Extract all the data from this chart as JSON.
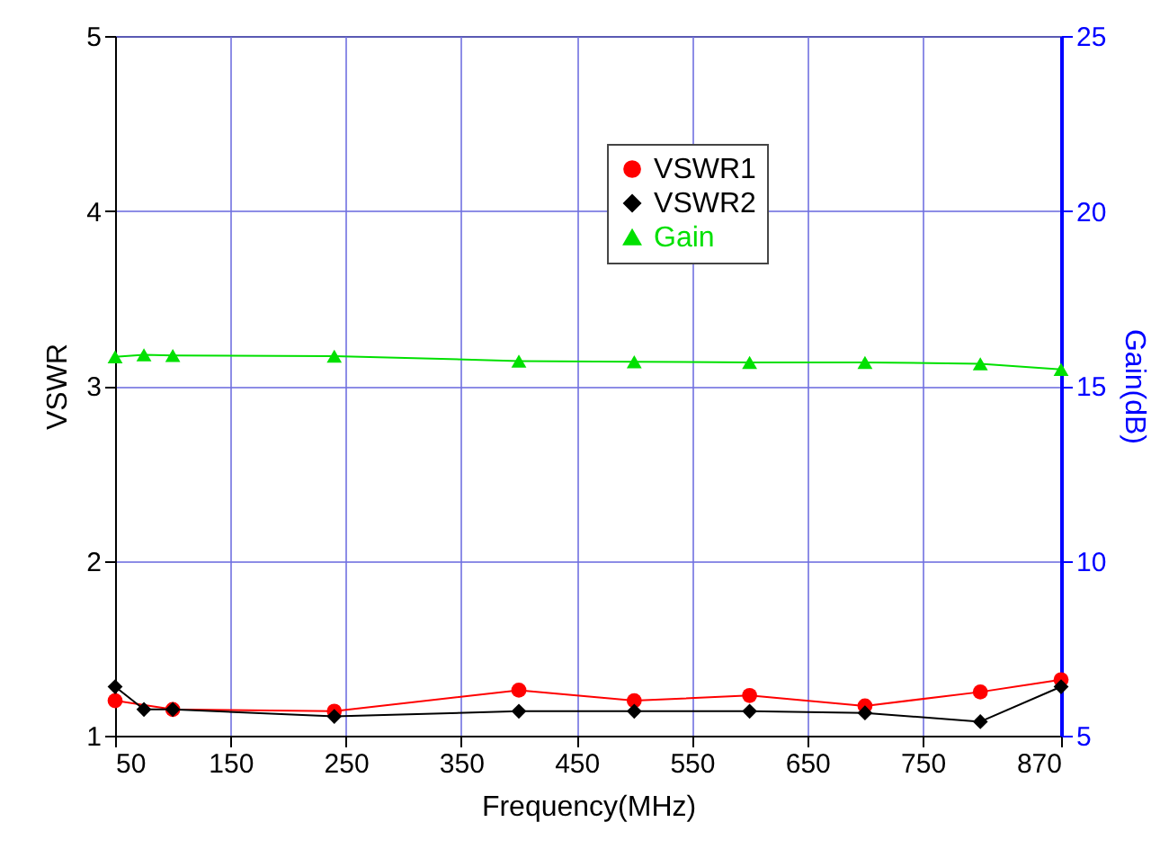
{
  "chart_data": {
    "type": "line",
    "xlabel": "Frequency(MHz)",
    "ylabel": "VSWR",
    "y2label": "Gain(dB)",
    "xlim": [
      50,
      870
    ],
    "xticks": [
      50,
      150,
      250,
      350,
      450,
      550,
      650,
      750,
      870
    ],
    "ylim": [
      1,
      5
    ],
    "yticks": [
      1,
      2,
      3,
      4,
      5
    ],
    "y2lim": [
      5,
      25
    ],
    "y2ticks": [
      5,
      10,
      15,
      20,
      25
    ],
    "grid": true,
    "legend": "top",
    "series": [
      {
        "name": "VSWR1",
        "color": "#ff0000",
        "marker": "circle",
        "x": [
          50,
          100,
          240,
          400,
          500,
          600,
          700,
          800,
          870
        ],
        "values": [
          1.2,
          1.15,
          1.14,
          1.26,
          1.2,
          1.23,
          1.17,
          1.25,
          1.32
        ]
      },
      {
        "name": "VSWR2",
        "color": "#000000",
        "marker": "diamond",
        "x": [
          50,
          75,
          100,
          240,
          400,
          500,
          600,
          700,
          800,
          870
        ],
        "values": [
          1.28,
          1.15,
          1.15,
          1.11,
          1.14,
          1.14,
          1.14,
          1.13,
          1.08,
          1.28
        ]
      },
      {
        "name": "Gain",
        "color": "#00e000",
        "marker": "triangle",
        "axis": "y2",
        "x": [
          50,
          75,
          100,
          240,
          400,
          500,
          600,
          700,
          800,
          870
        ],
        "values": [
          15.83,
          15.89,
          15.87,
          15.85,
          15.71,
          15.69,
          15.67,
          15.67,
          15.63,
          15.47
        ]
      }
    ]
  }
}
